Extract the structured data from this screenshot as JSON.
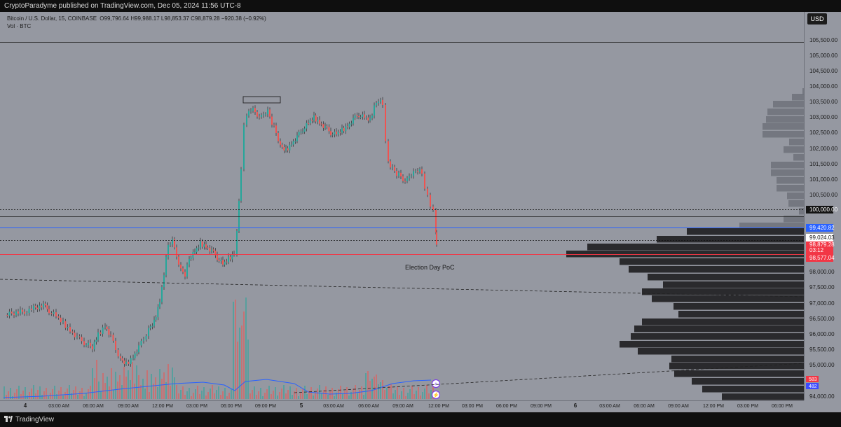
{
  "header": {
    "publisher": "CryptoParadyme published on TradingView.com, Dec 05, 2024 11:56 UTC-8"
  },
  "legend": {
    "symbol": "Bitcoin / U.S. Dollar, 15, COINBASE",
    "ohlc": "O99,796.64  H99,988.17  L98,853.37  C98,879.28  −920.38 (−0.92%)",
    "volume": "Vol · BTC"
  },
  "currency": "USD",
  "annotation": "Election Day PoC",
  "footer": {
    "brand": "TradingView"
  },
  "price_axis": {
    "ticks": [
      "105,500.00",
      "105,000.00",
      "104,500.00",
      "104,000.00",
      "103,500.00",
      "103,000.00",
      "102,500.00",
      "102,000.00",
      "101,500.00",
      "101,000.00",
      "100,500.00",
      "98,000.00",
      "97,500.00",
      "97,000.00",
      "96,500.00",
      "96,000.00",
      "95,500.00",
      "95,000.00",
      "94,000.00"
    ],
    "labels": {
      "round": "100,000.00",
      "blue_line": "99,420.82",
      "dotted": "99,024.03",
      "last_price": "98,879.28",
      "countdown": "03:12",
      "red_line": "98,577.04",
      "vol_red": "583",
      "vol_avg": "482"
    }
  },
  "time_axis": {
    "labels": [
      "4",
      "03:00 AM",
      "06:00 AM",
      "09:00 AM",
      "12:00 PM",
      "03:00 PM",
      "06:00 PM",
      "09:00 PM",
      "5",
      "03:00 AM",
      "06:00 AM",
      "09:00 AM",
      "12:00 PM",
      "03:00 PM",
      "06:00 PM",
      "09:00 PM",
      "6",
      "03:00 AM",
      "06:00 AM",
      "09:00 AM",
      "12:00 PM",
      "03:00 PM",
      "06:00 PM"
    ]
  },
  "colors": {
    "up": "#26a69a",
    "down": "#ef5350",
    "blue_line": "#2962ff",
    "red_line": "#f23645",
    "profile": "#2a2a2d"
  }
}
